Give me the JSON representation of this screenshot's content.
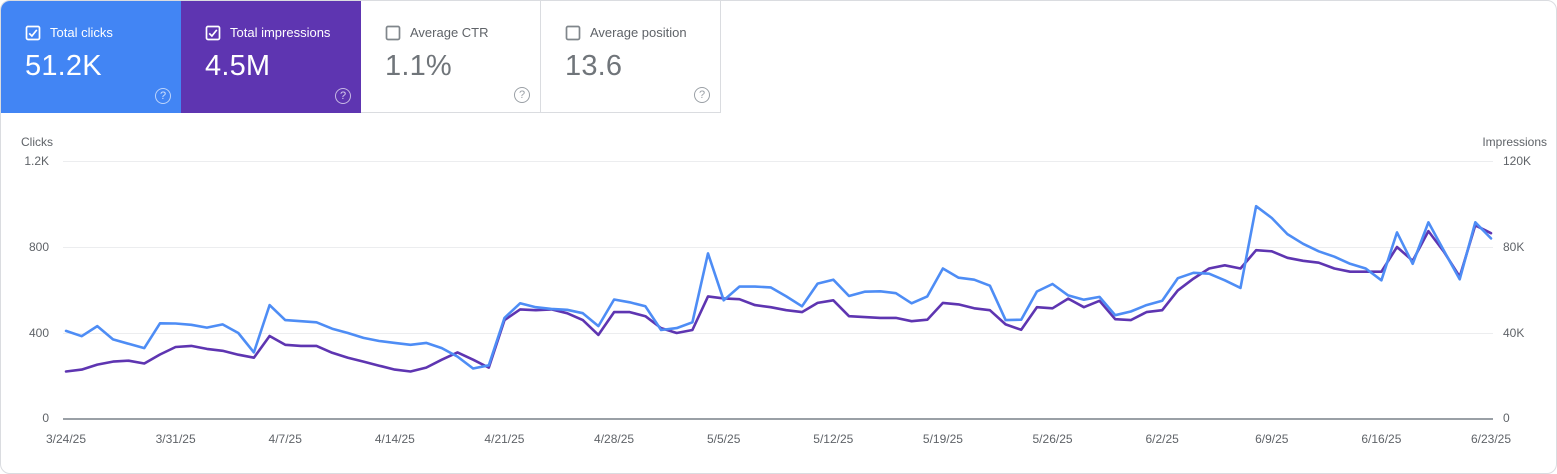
{
  "cards": [
    {
      "label": "Total clicks",
      "value": "51.2K",
      "checked": true,
      "selected": true,
      "color_hex": "#4285f4",
      "help_glyph": "?"
    },
    {
      "label": "Total impressions",
      "value": "4.5M",
      "checked": true,
      "selected": true,
      "color_hex": "#5e35b1",
      "help_glyph": "?"
    },
    {
      "label": "Average CTR",
      "value": "1.1%",
      "checked": false,
      "selected": false,
      "help_glyph": "?"
    },
    {
      "label": "Average position",
      "value": "13.6",
      "checked": false,
      "selected": false,
      "help_glyph": "?"
    }
  ],
  "chart_data": {
    "type": "line",
    "interval": "daily",
    "start_date": "3/24/25",
    "end_date": "6/23/25",
    "grid": "horizontal-only",
    "left_axis": {
      "title": "Clicks",
      "ticks": [
        "1.2K",
        "800",
        "400",
        "0"
      ],
      "min": 0,
      "max": 1200
    },
    "right_axis": {
      "title": "Impressions",
      "ticks": [
        "120K",
        "80K",
        "40K",
        "0"
      ],
      "min": 0,
      "max": 120000
    },
    "x_tick_labels": [
      "3/24/25",
      "3/31/25",
      "4/7/25",
      "4/14/25",
      "4/21/25",
      "4/28/25",
      "5/5/25",
      "5/12/25",
      "5/19/25",
      "5/26/25",
      "6/2/25",
      "6/9/25",
      "6/16/25",
      "6/23/25"
    ],
    "series": [
      {
        "name": "Total clicks",
        "axis": "left",
        "color": "#4e8df5",
        "values": [
          410,
          385,
          432,
          370,
          350,
          330,
          445,
          444,
          438,
          425,
          440,
          400,
          310,
          530,
          460,
          455,
          450,
          420,
          400,
          377,
          363,
          354,
          345,
          354,
          330,
          290,
          235,
          250,
          470,
          538,
          520,
          512,
          508,
          492,
          432,
          556,
          543,
          524,
          414,
          423,
          450,
          770,
          552,
          616,
          616,
          612,
          570,
          524,
          630,
          648,
          572,
          592,
          594,
          585,
          538,
          570,
          700,
          657,
          648,
          620,
          460,
          462,
          593,
          628,
          575,
          555,
          568,
          483,
          500,
          530,
          550,
          655,
          680,
          676,
          645,
          610,
          990,
          935,
          860,
          815,
          780,
          755,
          722,
          700,
          645,
          868,
          722,
          915,
          782,
          650,
          915,
          840
        ]
      },
      {
        "name": "Total impressions",
        "axis": "right",
        "color": "#5e35b1",
        "values": [
          22100,
          23000,
          25300,
          26700,
          27100,
          25800,
          30000,
          33500,
          34000,
          32600,
          31700,
          29900,
          28500,
          38600,
          34500,
          34000,
          34000,
          30800,
          28500,
          26700,
          24800,
          23000,
          22100,
          23900,
          27600,
          31000,
          27600,
          23900,
          46000,
          51000,
          50600,
          51000,
          49200,
          46000,
          39100,
          49700,
          49700,
          47800,
          42300,
          40000,
          41400,
          57000,
          56100,
          55700,
          53000,
          52000,
          50600,
          49700,
          54000,
          55200,
          47800,
          47400,
          47000,
          47000,
          45500,
          46200,
          54000,
          53300,
          51500,
          50600,
          44000,
          41500,
          52000,
          51500,
          56000,
          52000,
          55000,
          46400,
          46000,
          49700,
          50600,
          59800,
          65300,
          70000,
          71500,
          70000,
          78500,
          78000,
          75000,
          73600,
          72700,
          70000,
          68500,
          68500,
          68500,
          80000,
          73600,
          87400,
          77700,
          66200,
          90100,
          86400
        ]
      }
    ]
  }
}
